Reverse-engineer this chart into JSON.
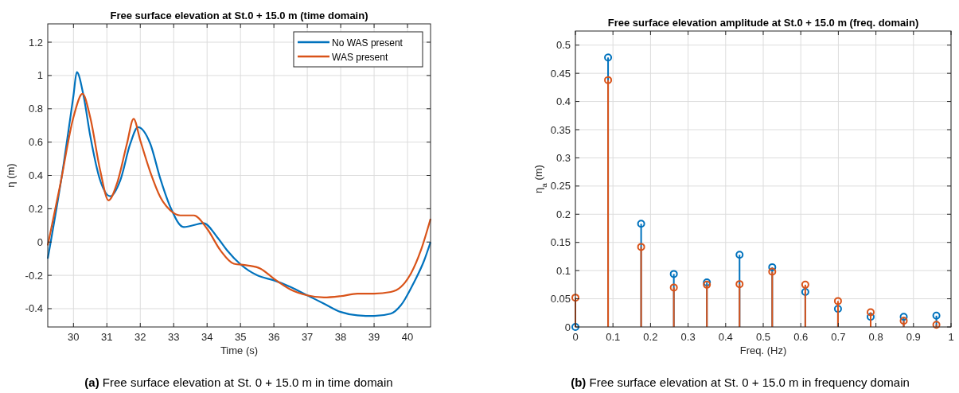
{
  "chart_data": [
    {
      "type": "line",
      "title": "Free surface elevation at St.0 + 15.0 m (time domain)",
      "xlabel": "Time (s)",
      "ylabel": "η (m)",
      "annotations": [
        "(a) Free surface elevation at St. 0 + 15.0 m in time domain"
      ],
      "xlim": [
        29.23,
        40.69
      ],
      "ylim": [
        -0.51,
        1.31
      ],
      "xticks": [
        30,
        31,
        32,
        33,
        34,
        35,
        36,
        37,
        38,
        39,
        40
      ],
      "yticks": [
        -0.4,
        -0.2,
        0,
        0.2,
        0.4,
        0.6,
        0.8,
        1,
        1.2
      ],
      "grid": true,
      "legend": "top right",
      "line_style": "solid",
      "series": [
        {
          "name": "No WAS present",
          "color": "#0072bd",
          "x": [
            29.23,
            29.7,
            30,
            30.1,
            30.3,
            30.5,
            30.8,
            31.1,
            31.4,
            31.7,
            31.93,
            32.3,
            32.6,
            32.9,
            33.3,
            33.9,
            34.3,
            34.6,
            35,
            35.5,
            36,
            36.5,
            37,
            37.5,
            38,
            38.5,
            39,
            39.5,
            39.8,
            40.2,
            40.5,
            40.69
          ],
          "values": [
            -0.1,
            0.46,
            0.88,
            1.02,
            0.88,
            0.64,
            0.37,
            0.275,
            0.37,
            0.59,
            0.69,
            0.59,
            0.38,
            0.21,
            0.09,
            0.113,
            0.03,
            -0.05,
            -0.134,
            -0.2,
            -0.23,
            -0.27,
            -0.32,
            -0.37,
            -0.42,
            -0.44,
            -0.444,
            -0.43,
            -0.38,
            -0.24,
            -0.11,
            0
          ]
        },
        {
          "name": "WAS present",
          "color": "#d95319",
          "x": [
            29.23,
            29.6,
            30,
            30.27,
            30.5,
            30.8,
            31.05,
            31.3,
            31.6,
            31.8,
            32,
            32.3,
            32.6,
            32.9,
            33.2,
            33.6,
            34,
            34.4,
            34.8,
            35.2,
            35.6,
            36,
            36.5,
            37,
            37.5,
            38,
            38.5,
            39,
            39.5,
            39.8,
            40.1,
            40.4,
            40.69
          ],
          "values": [
            -0.02,
            0.34,
            0.75,
            0.89,
            0.75,
            0.43,
            0.25,
            0.35,
            0.59,
            0.74,
            0.61,
            0.42,
            0.27,
            0.19,
            0.16,
            0.16,
            0.08,
            -0.05,
            -0.13,
            -0.14,
            -0.16,
            -0.22,
            -0.285,
            -0.32,
            -0.333,
            -0.325,
            -0.31,
            -0.31,
            -0.3,
            -0.27,
            -0.19,
            -0.05,
            0.14
          ]
        }
      ]
    },
    {
      "type": "lollipop",
      "title": "Free surface elevation amplitude at St.0 + 15.0 m (freq. domain)",
      "xlabel": "Freq. (Hz)",
      "ylabel": "η$_{a}$ (m)",
      "annotations": [
        "(b) Free surface elevation at St. 0 + 15.0 m in frequency domain"
      ],
      "xlim": [
        0,
        1
      ],
      "ylim": [
        0,
        0.525
      ],
      "xticks": [
        0,
        0.1,
        0.2,
        0.3,
        0.4,
        0.5,
        0.6,
        0.7,
        0.8,
        0.9,
        1
      ],
      "yticks": [
        0,
        0.05,
        0.1,
        0.15,
        0.2,
        0.25,
        0.3,
        0.35,
        0.4,
        0.45,
        0.5
      ],
      "grid": true,
      "marker": "circle",
      "series": [
        {
          "color": "#0072bd",
          "x": [
            0,
            0.087,
            0.175,
            0.262,
            0.35,
            0.437,
            0.524,
            0.612,
            0.699,
            0.786,
            0.874,
            0.961
          ],
          "values": [
            0,
            0.478,
            0.183,
            0.094,
            0.079,
            0.128,
            0.106,
            0.062,
            0.032,
            0.018,
            0.018,
            0.02
          ]
        },
        {
          "color": "#d95319",
          "x": [
            0,
            0.087,
            0.175,
            0.262,
            0.35,
            0.437,
            0.524,
            0.612,
            0.699,
            0.786,
            0.874,
            0.961
          ],
          "values": [
            0.052,
            0.438,
            0.142,
            0.07,
            0.075,
            0.076,
            0.098,
            0.075,
            0.046,
            0.026,
            0.011,
            0.004
          ]
        }
      ]
    }
  ]
}
